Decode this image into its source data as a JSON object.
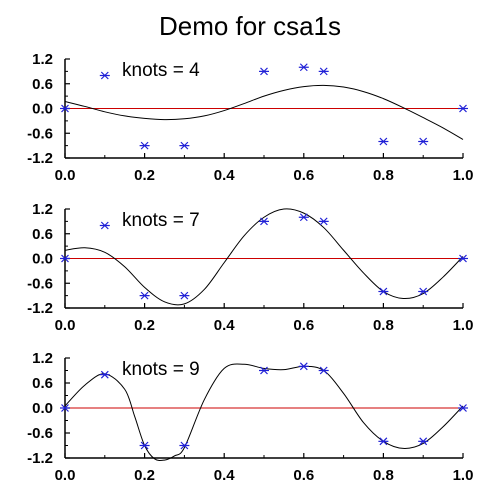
{
  "title": "Demo for csa1s",
  "colors": {
    "background": "#ffffff",
    "axes": "#000000",
    "zero_line": "#cc0000",
    "markers": "#1f1fd6",
    "curve": "#000000"
  },
  "chart_data": [
    {
      "type": "line",
      "annotation": "knots = 4",
      "xlim": [
        0.0,
        1.0
      ],
      "ylim": [
        -1.2,
        1.2
      ],
      "x_ticks": [
        "0.0",
        "0.2",
        "0.4",
        "0.6",
        "0.8",
        "1.0"
      ],
      "y_ticks": [
        "-1.2",
        "-0.6",
        "0.0",
        "0.6",
        "1.2"
      ],
      "zero_line": 0.0,
      "points": {
        "x": [
          0.0,
          0.1,
          0.2,
          0.3,
          0.5,
          0.6,
          0.65,
          0.8,
          0.9,
          1.0
        ],
        "y": [
          0.0,
          0.8,
          -0.9,
          -0.9,
          0.9,
          1.0,
          0.9,
          -0.8,
          -0.8,
          0.0
        ]
      },
      "curve": {
        "x": [
          0.0,
          0.05,
          0.1,
          0.15,
          0.2,
          0.25,
          0.3,
          0.35,
          0.4,
          0.45,
          0.5,
          0.55,
          0.6,
          0.65,
          0.7,
          0.75,
          0.8,
          0.85,
          0.9,
          0.95,
          1.0
        ],
        "y": [
          0.17,
          0.05,
          -0.08,
          -0.18,
          -0.24,
          -0.27,
          -0.25,
          -0.18,
          -0.05,
          0.12,
          0.3,
          0.44,
          0.53,
          0.56,
          0.52,
          0.41,
          0.24,
          0.02,
          -0.22,
          -0.47,
          -0.75
        ]
      }
    },
    {
      "type": "line",
      "annotation": "knots = 7",
      "xlim": [
        0.0,
        1.0
      ],
      "ylim": [
        -1.2,
        1.2
      ],
      "x_ticks": [
        "0.0",
        "0.2",
        "0.4",
        "0.6",
        "0.8",
        "1.0"
      ],
      "y_ticks": [
        "-1.2",
        "-0.6",
        "0.0",
        "0.6",
        "1.2"
      ],
      "zero_line": 0.0,
      "points": {
        "x": [
          0.0,
          0.1,
          0.2,
          0.3,
          0.5,
          0.6,
          0.65,
          0.8,
          0.9,
          1.0
        ],
        "y": [
          0.0,
          0.8,
          -0.9,
          -0.9,
          0.9,
          1.0,
          0.9,
          -0.8,
          -0.8,
          0.0
        ]
      },
      "curve": {
        "x": [
          0.0,
          0.05,
          0.1,
          0.15,
          0.2,
          0.25,
          0.3,
          0.35,
          0.4,
          0.45,
          0.5,
          0.55,
          0.6,
          0.65,
          0.7,
          0.75,
          0.8,
          0.85,
          0.9,
          0.95,
          1.0
        ],
        "y": [
          0.2,
          0.26,
          0.15,
          -0.2,
          -0.7,
          -1.05,
          -1.1,
          -0.75,
          -0.1,
          0.55,
          1.0,
          1.2,
          1.1,
          0.75,
          0.2,
          -0.35,
          -0.8,
          -0.97,
          -0.85,
          -0.45,
          0.05
        ]
      }
    },
    {
      "type": "line",
      "annotation": "knots = 9",
      "xlim": [
        0.0,
        1.0
      ],
      "ylim": [
        -1.2,
        1.2
      ],
      "x_ticks": [
        "0.0",
        "0.2",
        "0.4",
        "0.6",
        "0.8",
        "1.0"
      ],
      "y_ticks": [
        "-1.2",
        "-0.6",
        "0.0",
        "0.6",
        "1.2"
      ],
      "zero_line": 0.0,
      "points": {
        "x": [
          0.0,
          0.1,
          0.2,
          0.3,
          0.5,
          0.6,
          0.65,
          0.8,
          0.9,
          1.0
        ],
        "y": [
          0.0,
          0.8,
          -0.9,
          -0.9,
          0.9,
          1.0,
          0.9,
          -0.8,
          -0.8,
          0.0
        ]
      },
      "curve": {
        "x": [
          0.0,
          0.05,
          0.1,
          0.15,
          0.175,
          0.2,
          0.225,
          0.25,
          0.275,
          0.3,
          0.35,
          0.4,
          0.45,
          0.5,
          0.55,
          0.6,
          0.65,
          0.7,
          0.75,
          0.8,
          0.85,
          0.9,
          0.95,
          1.0
        ],
        "y": [
          0.05,
          0.55,
          0.82,
          0.45,
          -0.2,
          -0.9,
          -1.22,
          -1.25,
          -1.15,
          -0.95,
          0.2,
          0.95,
          1.05,
          0.95,
          0.92,
          1.0,
          0.9,
          0.35,
          -0.35,
          -0.8,
          -0.97,
          -0.85,
          -0.45,
          0.05
        ]
      }
    }
  ]
}
